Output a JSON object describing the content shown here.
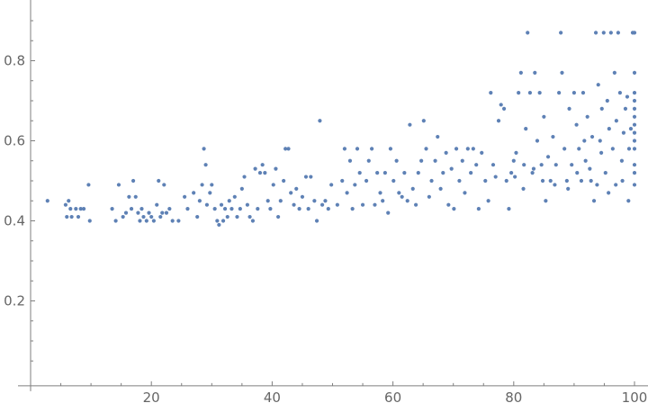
{
  "chart_data": {
    "type": "scatter",
    "title": "",
    "xlabel": "",
    "ylabel": "",
    "xlim": [
      0,
      101
    ],
    "ylim": [
      -0.012,
      0.95
    ],
    "xticks": [
      20,
      40,
      60,
      80,
      100
    ],
    "yticks": [
      0.2,
      0.4,
      0.6,
      0.8
    ],
    "xtick_labels": [
      "20",
      "40",
      "60",
      "80",
      "100"
    ],
    "ytick_labels": [
      "0.2",
      "0.4",
      "0.6",
      "0.8"
    ],
    "grid": false,
    "point_color": "#5E81B5",
    "axis_color": "#7f7f7f",
    "points": [
      [
        2.8,
        0.45
      ],
      [
        5.8,
        0.44
      ],
      [
        6.0,
        0.41
      ],
      [
        6.3,
        0.45
      ],
      [
        6.6,
        0.43
      ],
      [
        6.8,
        0.41
      ],
      [
        7.5,
        0.43
      ],
      [
        7.9,
        0.41
      ],
      [
        8.3,
        0.43
      ],
      [
        8.8,
        0.43
      ],
      [
        9.6,
        0.49
      ],
      [
        9.8,
        0.4
      ],
      [
        13.5,
        0.43
      ],
      [
        14.1,
        0.4
      ],
      [
        14.6,
        0.49
      ],
      [
        15.3,
        0.41
      ],
      [
        15.8,
        0.42
      ],
      [
        16.3,
        0.46
      ],
      [
        16.7,
        0.43
      ],
      [
        17.0,
        0.5
      ],
      [
        17.4,
        0.46
      ],
      [
        17.8,
        0.42
      ],
      [
        18.1,
        0.4
      ],
      [
        18.4,
        0.43
      ],
      [
        18.7,
        0.41
      ],
      [
        19.2,
        0.4
      ],
      [
        19.6,
        0.42
      ],
      [
        20.0,
        0.41
      ],
      [
        20.4,
        0.4
      ],
      [
        20.9,
        0.44
      ],
      [
        21.2,
        0.5
      ],
      [
        21.5,
        0.41
      ],
      [
        21.8,
        0.42
      ],
      [
        22.1,
        0.49
      ],
      [
        22.5,
        0.42
      ],
      [
        23.0,
        0.43
      ],
      [
        23.5,
        0.4
      ],
      [
        24.5,
        0.4
      ],
      [
        25.5,
        0.46
      ],
      [
        26.0,
        0.43
      ],
      [
        27.0,
        0.47
      ],
      [
        27.6,
        0.41
      ],
      [
        28.0,
        0.45
      ],
      [
        28.4,
        0.49
      ],
      [
        28.7,
        0.58
      ],
      [
        29.0,
        0.54
      ],
      [
        29.2,
        0.44
      ],
      [
        29.7,
        0.47
      ],
      [
        30.0,
        0.49
      ],
      [
        30.5,
        0.43
      ],
      [
        30.9,
        0.4
      ],
      [
        31.2,
        0.39
      ],
      [
        31.6,
        0.44
      ],
      [
        31.9,
        0.4
      ],
      [
        32.2,
        0.43
      ],
      [
        32.6,
        0.41
      ],
      [
        32.9,
        0.45
      ],
      [
        33.3,
        0.43
      ],
      [
        33.8,
        0.46
      ],
      [
        34.2,
        0.41
      ],
      [
        34.7,
        0.43
      ],
      [
        35.0,
        0.48
      ],
      [
        35.4,
        0.51
      ],
      [
        35.9,
        0.44
      ],
      [
        36.3,
        0.41
      ],
      [
        36.8,
        0.4
      ],
      [
        37.2,
        0.53
      ],
      [
        37.6,
        0.43
      ],
      [
        38.0,
        0.52
      ],
      [
        38.4,
        0.54
      ],
      [
        38.8,
        0.52
      ],
      [
        39.3,
        0.45
      ],
      [
        39.7,
        0.43
      ],
      [
        40.2,
        0.49
      ],
      [
        40.6,
        0.53
      ],
      [
        41.0,
        0.41
      ],
      [
        41.4,
        0.45
      ],
      [
        41.9,
        0.5
      ],
      [
        42.2,
        0.58
      ],
      [
        42.7,
        0.58
      ],
      [
        43.1,
        0.47
      ],
      [
        43.6,
        0.44
      ],
      [
        44.0,
        0.48
      ],
      [
        44.5,
        0.43
      ],
      [
        45.0,
        0.46
      ],
      [
        45.6,
        0.51
      ],
      [
        46.0,
        0.43
      ],
      [
        46.4,
        0.51
      ],
      [
        47.0,
        0.45
      ],
      [
        47.4,
        0.4
      ],
      [
        47.9,
        0.65
      ],
      [
        48.3,
        0.44
      ],
      [
        48.8,
        0.45
      ],
      [
        49.3,
        0.43
      ],
      [
        49.8,
        0.49
      ],
      [
        50.8,
        0.44
      ],
      [
        51.6,
        0.5
      ],
      [
        52.0,
        0.58
      ],
      [
        52.4,
        0.47
      ],
      [
        52.9,
        0.55
      ],
      [
        53.3,
        0.43
      ],
      [
        53.7,
        0.49
      ],
      [
        54.1,
        0.58
      ],
      [
        54.5,
        0.52
      ],
      [
        55.0,
        0.44
      ],
      [
        55.6,
        0.5
      ],
      [
        56.0,
        0.55
      ],
      [
        56.5,
        0.58
      ],
      [
        57.0,
        0.44
      ],
      [
        57.4,
        0.52
      ],
      [
        57.9,
        0.47
      ],
      [
        58.3,
        0.45
      ],
      [
        58.7,
        0.52
      ],
      [
        59.2,
        0.42
      ],
      [
        59.6,
        0.58
      ],
      [
        60.1,
        0.5
      ],
      [
        60.6,
        0.55
      ],
      [
        61.0,
        0.47
      ],
      [
        61.5,
        0.46
      ],
      [
        61.9,
        0.52
      ],
      [
        62.4,
        0.45
      ],
      [
        62.8,
        0.64
      ],
      [
        63.3,
        0.48
      ],
      [
        63.8,
        0.44
      ],
      [
        64.2,
        0.52
      ],
      [
        64.7,
        0.55
      ],
      [
        65.1,
        0.65
      ],
      [
        65.5,
        0.58
      ],
      [
        66.0,
        0.46
      ],
      [
        66.4,
        0.5
      ],
      [
        67.0,
        0.55
      ],
      [
        67.4,
        0.61
      ],
      [
        67.9,
        0.48
      ],
      [
        68.3,
        0.52
      ],
      [
        68.8,
        0.57
      ],
      [
        69.2,
        0.44
      ],
      [
        69.7,
        0.53
      ],
      [
        70.1,
        0.43
      ],
      [
        70.5,
        0.58
      ],
      [
        71.0,
        0.5
      ],
      [
        71.5,
        0.55
      ],
      [
        71.9,
        0.47
      ],
      [
        72.4,
        0.58
      ],
      [
        72.9,
        0.52
      ],
      [
        73.3,
        0.58
      ],
      [
        73.8,
        0.54
      ],
      [
        74.2,
        0.43
      ],
      [
        74.7,
        0.57
      ],
      [
        75.3,
        0.5
      ],
      [
        75.8,
        0.45
      ],
      [
        76.2,
        0.72
      ],
      [
        76.6,
        0.54
      ],
      [
        77.0,
        0.51
      ],
      [
        77.5,
        0.65
      ],
      [
        77.9,
        0.69
      ],
      [
        78.4,
        0.68
      ],
      [
        78.8,
        0.5
      ],
      [
        79.2,
        0.43
      ],
      [
        79.6,
        0.52
      ],
      [
        80.0,
        0.55
      ],
      [
        80.4,
        0.57
      ],
      [
        80.8,
        0.72
      ],
      [
        81.2,
        0.77
      ],
      [
        81.7,
        0.54
      ],
      [
        82.0,
        0.63
      ],
      [
        82.3,
        0.87
      ],
      [
        82.7,
        0.72
      ],
      [
        83.1,
        0.52
      ],
      [
        83.5,
        0.77
      ],
      [
        83.9,
        0.6
      ],
      [
        84.3,
        0.72
      ],
      [
        84.6,
        0.54
      ],
      [
        85.0,
        0.66
      ],
      [
        85.3,
        0.45
      ],
      [
        85.7,
        0.56
      ],
      [
        86.1,
        0.5
      ],
      [
        86.5,
        0.61
      ],
      [
        87.0,
        0.54
      ],
      [
        87.5,
        0.72
      ],
      [
        87.8,
        0.87
      ],
      [
        88.0,
        0.77
      ],
      [
        88.4,
        0.58
      ],
      [
        88.8,
        0.5
      ],
      [
        89.2,
        0.68
      ],
      [
        89.6,
        0.54
      ],
      [
        90.0,
        0.72
      ],
      [
        90.4,
        0.64
      ],
      [
        90.8,
        0.58
      ],
      [
        91.2,
        0.5
      ],
      [
        91.5,
        0.72
      ],
      [
        91.9,
        0.55
      ],
      [
        92.2,
        0.66
      ],
      [
        92.6,
        0.53
      ],
      [
        93.0,
        0.61
      ],
      [
        93.3,
        0.45
      ],
      [
        93.6,
        0.87
      ],
      [
        94.0,
        0.74
      ],
      [
        94.3,
        0.6
      ],
      [
        94.6,
        0.68
      ],
      [
        94.9,
        0.87
      ],
      [
        95.2,
        0.52
      ],
      [
        95.5,
        0.7
      ],
      [
        95.8,
        0.63
      ],
      [
        96.1,
        0.87
      ],
      [
        96.4,
        0.58
      ],
      [
        96.7,
        0.77
      ],
      [
        97.0,
        0.65
      ],
      [
        97.3,
        0.87
      ],
      [
        97.6,
        0.72
      ],
      [
        97.9,
        0.55
      ],
      [
        98.2,
        0.62
      ],
      [
        98.5,
        0.68
      ],
      [
        98.8,
        0.71
      ],
      [
        99.1,
        0.58
      ],
      [
        99.4,
        0.63
      ],
      [
        99.7,
        0.87
      ],
      [
        100,
        0.87
      ],
      [
        100,
        0.77
      ],
      [
        100,
        0.72
      ],
      [
        100,
        0.7
      ],
      [
        100,
        0.68
      ],
      [
        100,
        0.66
      ],
      [
        100,
        0.64
      ],
      [
        100,
        0.62
      ],
      [
        100,
        0.6
      ],
      [
        100,
        0.58
      ],
      [
        100,
        0.54
      ],
      [
        100,
        0.52
      ],
      [
        100,
        0.49
      ],
      [
        99.0,
        0.45
      ],
      [
        98.0,
        0.5
      ],
      [
        96.9,
        0.49
      ],
      [
        95.7,
        0.47
      ],
      [
        94.5,
        0.57
      ],
      [
        93.8,
        0.49
      ],
      [
        92.8,
        0.5
      ],
      [
        91.7,
        0.6
      ],
      [
        90.5,
        0.52
      ],
      [
        89.0,
        0.48
      ],
      [
        86.8,
        0.49
      ],
      [
        84.8,
        0.5
      ],
      [
        83.3,
        0.53
      ],
      [
        81.6,
        0.48
      ],
      [
        80.2,
        0.51
      ]
    ]
  }
}
